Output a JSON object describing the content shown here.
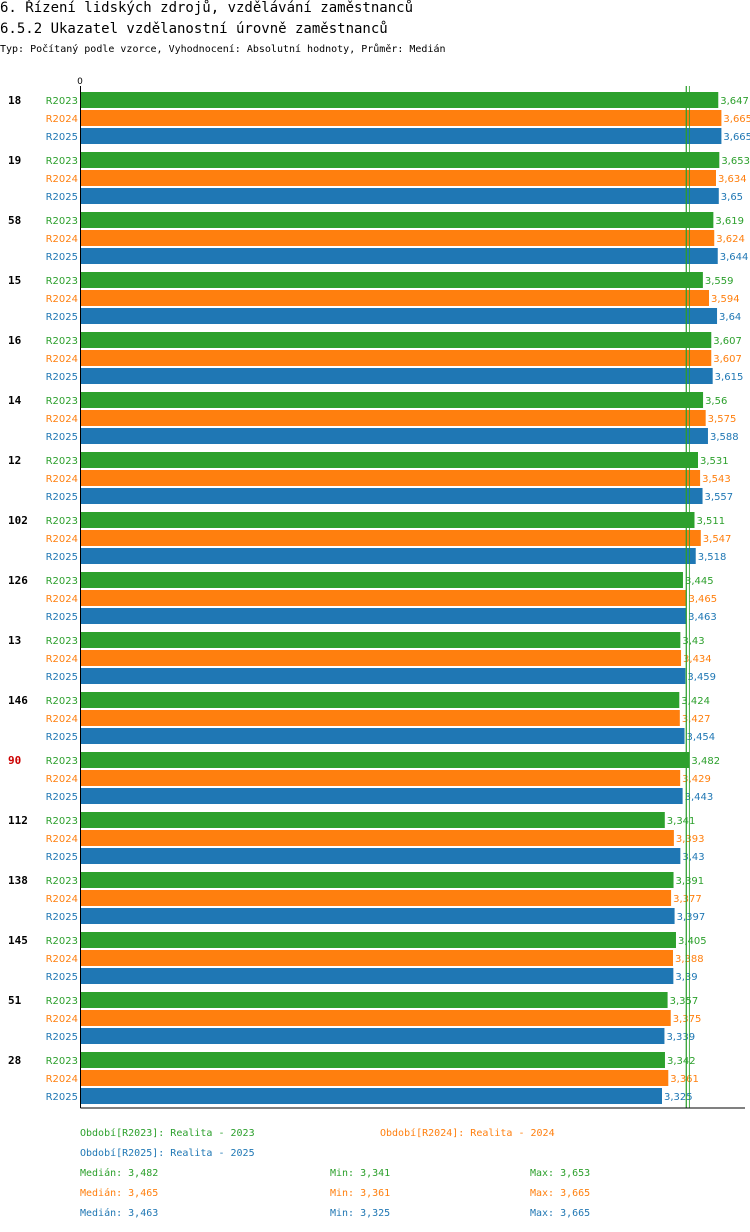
{
  "title": "6. Řízení lidských zdrojů, vzdělávání zaměstnanců",
  "subtitle": "6.5.2 Ukazatel vzdělanostní úrovně zaměstnanců",
  "meta": "Typ: Počítaný podle vzorce, Vyhodnocení: Absolutní hodnoty, Průměr: Medián",
  "colors": {
    "R2023": "#2ca02c",
    "R2024": "#ff7f0e",
    "R2025": "#1f77b4",
    "highlight": "#cc0000",
    "median_line": "#2ca02c"
  },
  "legend": {
    "periods": [
      {
        "text": "Období[R2023]: Realita - 2023",
        "series": "R2023"
      },
      {
        "text": "Období[R2024]: Realita - 2024",
        "series": "R2024"
      },
      {
        "text": "Období[R2025]: Realita - 2025",
        "series": "R2025"
      }
    ],
    "stats": [
      {
        "series": "R2023",
        "median": "Medián: 3,482",
        "min": "Min: 3,341",
        "max": "Max: 3,653"
      },
      {
        "series": "R2024",
        "median": "Medián: 3,465",
        "min": "Min: 3,361",
        "max": "Max: 3,665"
      },
      {
        "series": "R2025",
        "median": "Medián: 3,463",
        "min": "Min: 3,325",
        "max": "Max: 3,665"
      }
    ]
  },
  "chart_data": {
    "type": "bar",
    "orientation": "horizontal",
    "title": "6.5.2 Ukazatel vzdělanostní úrovně zaměstnanců",
    "xlim": [
      0,
      3.8
    ],
    "x_tick_labels": [
      "0"
    ],
    "highlight_category": "90",
    "median_values": [
      3.482,
      3.465,
      3.463
    ],
    "categories": [
      "18",
      "19",
      "58",
      "15",
      "16",
      "14",
      "12",
      "102",
      "126",
      "13",
      "146",
      "90",
      "112",
      "138",
      "145",
      "51",
      "28"
    ],
    "series": [
      {
        "name": "R2023",
        "values": [
          3.647,
          3.653,
          3.619,
          3.559,
          3.607,
          3.56,
          3.531,
          3.511,
          3.445,
          3.43,
          3.424,
          3.482,
          3.341,
          3.391,
          3.405,
          3.357,
          3.342
        ],
        "labels": [
          "3,647",
          "3,653",
          "3,619",
          "3,559",
          "3,607",
          "3,56",
          "3,531",
          "3,511",
          "3,445",
          "3,43",
          "3,424",
          "3,482",
          "3,341",
          "3,391",
          "3,405",
          "3,357",
          "3,342"
        ]
      },
      {
        "name": "R2024",
        "values": [
          3.665,
          3.634,
          3.624,
          3.594,
          3.607,
          3.575,
          3.543,
          3.547,
          3.465,
          3.434,
          3.427,
          3.429,
          3.393,
          3.377,
          3.388,
          3.375,
          3.361
        ],
        "labels": [
          "3,665",
          "3,634",
          "3,624",
          "3,594",
          "3,607",
          "3,575",
          "3,543",
          "3,547",
          "3,465",
          "3,434",
          "3,427",
          "3,429",
          "3,393",
          "3,377",
          "3,388",
          "3,375",
          "3,361"
        ]
      },
      {
        "name": "R2025",
        "values": [
          3.665,
          3.65,
          3.644,
          3.64,
          3.615,
          3.588,
          3.557,
          3.518,
          3.463,
          3.459,
          3.454,
          3.443,
          3.43,
          3.397,
          3.39,
          3.339,
          3.325
        ],
        "labels": [
          "3,665",
          "3,65",
          "3,644",
          "3,64",
          "3,615",
          "3,588",
          "3,557",
          "3,518",
          "3,463",
          "3,459",
          "3,454",
          "3,443",
          "3,43",
          "3,397",
          "3,39",
          "3,339",
          "3,325"
        ]
      }
    ]
  }
}
